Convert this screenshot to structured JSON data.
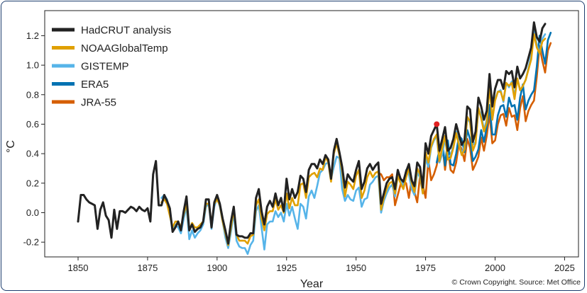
{
  "chart_data": {
    "type": "line",
    "title": "",
    "xlabel": "Year",
    "ylabel": "°C",
    "xlim": [
      1838,
      2030
    ],
    "ylim": [
      -0.3,
      1.37
    ],
    "xticks": [
      1850,
      1875,
      1900,
      1925,
      1950,
      1975,
      2000,
      2025
    ],
    "yticks": [
      -0.2,
      0.0,
      0.2,
      0.4,
      0.6,
      0.8,
      1.0,
      1.2
    ],
    "legend_position": "top-left",
    "credit": "© Crown Copyright. Source: Met Office",
    "colors": {
      "HadCRUT analysis": "#222222",
      "NOAAGlobalTemp": "#e0a000",
      "GISTEMP": "#56b4e9",
      "ERA5": "#0072b2",
      "JRA-55": "#d55e00",
      "highlight": "#e02020"
    },
    "series": [
      {
        "name": "HadCRUT analysis",
        "start_year": 1850,
        "values": [
          -0.06,
          0.12,
          0.12,
          0.09,
          0.07,
          0.06,
          0.05,
          -0.11,
          0.02,
          0.07,
          -0.02,
          -0.05,
          -0.17,
          0.02,
          -0.11,
          0.01,
          0.01,
          0.0,
          0.02,
          0.04,
          0.03,
          0.01,
          0.04,
          0.02,
          0.01,
          0.03,
          -0.06,
          0.26,
          0.35,
          0.05,
          0.05,
          0.12,
          0.08,
          0.03,
          -0.13,
          -0.1,
          -0.06,
          -0.12,
          0.01,
          0.11,
          -0.12,
          -0.08,
          -0.13,
          -0.11,
          -0.1,
          -0.06,
          0.09,
          0.09,
          -0.1,
          0.07,
          0.12,
          0.06,
          -0.04,
          -0.12,
          -0.21,
          -0.06,
          0.04,
          -0.15,
          -0.16,
          -0.16,
          -0.17,
          -0.17,
          -0.14,
          -0.14,
          0.1,
          0.16,
          0.01,
          -0.08,
          0.04,
          0.08,
          0.04,
          0.13,
          0.05,
          0.1,
          0.01,
          0.23,
          0.09,
          0.16,
          0.1,
          0.14,
          0.25,
          0.23,
          0.14,
          0.29,
          0.33,
          0.33,
          0.3,
          0.36,
          0.33,
          0.39,
          0.36,
          0.23,
          0.42,
          0.5,
          0.41,
          0.31,
          0.17,
          0.26,
          0.23,
          0.21,
          0.29,
          0.35,
          0.16,
          0.21,
          0.3,
          0.33,
          0.29,
          0.32,
          0.34,
          0.06,
          0.13,
          0.2,
          0.23,
          0.24,
          0.16,
          0.29,
          0.23,
          0.21,
          0.28,
          0.33,
          0.22,
          0.18,
          0.34,
          0.31,
          0.17,
          0.47,
          0.4,
          0.52,
          0.56,
          0.6,
          0.42,
          0.5,
          0.58,
          0.42,
          0.44,
          0.5,
          0.6,
          0.53,
          0.46,
          0.49,
          0.72,
          0.7,
          0.48,
          0.55,
          0.78,
          0.72,
          0.63,
          0.69,
          0.94,
          0.72,
          0.84,
          0.9,
          0.9,
          0.84,
          0.96,
          0.94,
          0.96,
          0.85,
          0.99,
          0.91,
          0.94,
          0.98,
          1.05,
          1.12,
          1.29,
          1.19,
          1.16,
          1.25,
          1.28
        ]
      },
      {
        "name": "NOAAGlobalTemp",
        "start_year": 1880,
        "values": [
          0.07,
          0.09,
          0.06,
          -0.02,
          -0.1,
          -0.06,
          -0.06,
          -0.1,
          -0.01,
          0.06,
          -0.12,
          -0.07,
          -0.1,
          -0.1,
          -0.08,
          -0.06,
          0.06,
          0.06,
          -0.08,
          0.06,
          0.09,
          0.05,
          -0.06,
          -0.14,
          -0.22,
          -0.1,
          0.02,
          -0.15,
          -0.19,
          -0.19,
          -0.19,
          -0.21,
          -0.16,
          -0.15,
          0.05,
          0.09,
          -0.04,
          -0.12,
          -0.01,
          0.01,
          0.01,
          0.09,
          0.02,
          0.05,
          0.0,
          0.13,
          0.03,
          0.1,
          0.05,
          0.05,
          0.19,
          0.2,
          0.1,
          0.24,
          0.26,
          0.27,
          0.24,
          0.3,
          0.29,
          0.38,
          0.34,
          0.21,
          0.4,
          0.47,
          0.39,
          0.28,
          0.11,
          0.21,
          0.19,
          0.16,
          0.25,
          0.29,
          0.1,
          0.15,
          0.24,
          0.28,
          0.24,
          0.27,
          0.28,
          0.02,
          0.1,
          0.16,
          0.2,
          0.21,
          0.13,
          0.25,
          0.2,
          0.16,
          0.24,
          0.3,
          0.2,
          0.14,
          0.3,
          0.26,
          0.13,
          0.41,
          0.34,
          0.45,
          0.5,
          0.53,
          0.35,
          0.44,
          0.52,
          0.36,
          0.37,
          0.44,
          0.54,
          0.46,
          0.39,
          0.43,
          0.65,
          0.62,
          0.42,
          0.47,
          0.71,
          0.64,
          0.55,
          0.61,
          0.86,
          0.63,
          0.76,
          0.82,
          0.82,
          0.76,
          0.88,
          0.86,
          0.88,
          0.77,
          0.91,
          0.83,
          0.86,
          0.9,
          0.97,
          1.04,
          1.21,
          1.12,
          1.08,
          1.16,
          1.18
        ]
      },
      {
        "name": "GISTEMP",
        "start_year": 1880,
        "values": [
          0.1,
          0.12,
          0.09,
          -0.01,
          -0.12,
          -0.08,
          -0.1,
          -0.14,
          -0.04,
          0.04,
          -0.18,
          -0.12,
          -0.17,
          -0.14,
          -0.12,
          -0.08,
          0.04,
          0.06,
          -0.11,
          0.04,
          0.1,
          0.04,
          -0.06,
          -0.17,
          -0.24,
          -0.13,
          0.0,
          -0.19,
          -0.23,
          -0.24,
          -0.24,
          -0.28,
          -0.22,
          -0.19,
          0.01,
          0.05,
          -0.1,
          -0.25,
          -0.08,
          -0.06,
          -0.06,
          0.01,
          -0.03,
          0.0,
          -0.06,
          0.06,
          -0.02,
          0.04,
          -0.04,
          -0.11,
          0.06,
          0.04,
          -0.04,
          0.11,
          0.15,
          0.1,
          0.18,
          0.27,
          0.29,
          0.33,
          0.34,
          0.23,
          0.31,
          0.38,
          0.37,
          0.16,
          0.08,
          0.12,
          0.09,
          0.08,
          0.15,
          0.17,
          0.04,
          0.09,
          0.1,
          0.19,
          0.21,
          0.24,
          0.25,
          0.0,
          0.08,
          0.13,
          0.17,
          0.19,
          0.11,
          0.25,
          0.23,
          0.17,
          0.29,
          0.26,
          0.16,
          0.12,
          0.27,
          0.24,
          0.13,
          0.37,
          0.31,
          0.44,
          0.49,
          0.52,
          0.34,
          0.4,
          0.5,
          0.38,
          0.39,
          0.45,
          0.55,
          0.47,
          0.4,
          0.45,
          0.64,
          0.61,
          0.46,
          0.48,
          0.7,
          0.67,
          0.56,
          0.63,
          0.86,
          0.63,
          0.77,
          0.82,
          0.83,
          0.75,
          0.88,
          0.85,
          0.89,
          0.79,
          0.91,
          0.83,
          0.86,
          0.9,
          0.98,
          1.07,
          1.24,
          1.14,
          1.08,
          1.18,
          1.21
        ]
      },
      {
        "name": "ERA5",
        "start_year": 1979,
        "values": [
          0.34,
          0.43,
          0.48,
          0.32,
          0.49,
          0.33,
          0.32,
          0.4,
          0.52,
          0.5,
          0.41,
          0.56,
          0.5,
          0.35,
          0.38,
          0.43,
          0.56,
          0.48,
          0.58,
          0.73,
          0.53,
          0.53,
          0.66,
          0.72,
          0.73,
          0.65,
          0.78,
          0.72,
          0.73,
          0.63,
          0.78,
          0.87,
          0.7,
          0.76,
          0.8,
          0.83,
          0.99,
          1.2,
          1.1,
          1.01,
          1.17,
          1.22
        ]
      },
      {
        "name": "JRA-55",
        "start_year": 1958,
        "values": [
          0.27,
          0.26,
          0.22,
          0.24,
          0.24,
          0.26,
          0.05,
          0.12,
          0.19,
          0.21,
          0.2,
          0.1,
          0.23,
          0.14,
          0.07,
          0.25,
          0.19,
          0.1,
          0.36,
          0.22,
          0.26,
          0.32,
          0.42,
          0.47,
          0.29,
          0.44,
          0.29,
          0.27,
          0.34,
          0.47,
          0.43,
          0.35,
          0.5,
          0.44,
          0.29,
          0.33,
          0.38,
          0.51,
          0.42,
          0.52,
          0.67,
          0.47,
          0.49,
          0.6,
          0.66,
          0.67,
          0.59,
          0.71,
          0.65,
          0.66,
          0.56,
          0.71,
          0.79,
          0.62,
          0.69,
          0.73,
          0.76,
          0.92,
          1.13,
          1.03,
          0.95,
          1.1,
          1.15
        ]
      }
    ],
    "highlight_point": {
      "x": 1979,
      "y": 0.6
    }
  }
}
